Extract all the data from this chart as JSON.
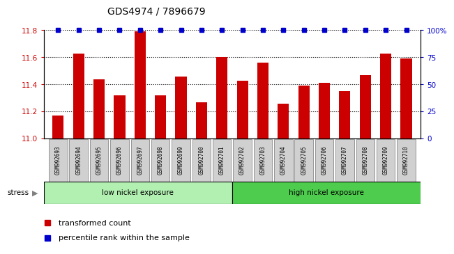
{
  "title": "GDS4974 / 7896679",
  "samples": [
    "GSM992693",
    "GSM992694",
    "GSM992695",
    "GSM992696",
    "GSM992697",
    "GSM992698",
    "GSM992699",
    "GSM992700",
    "GSM992701",
    "GSM992702",
    "GSM992703",
    "GSM992704",
    "GSM992705",
    "GSM992706",
    "GSM992707",
    "GSM992708",
    "GSM992709",
    "GSM992710"
  ],
  "bar_values": [
    11.17,
    11.63,
    11.44,
    11.32,
    11.79,
    11.32,
    11.46,
    11.27,
    11.6,
    11.43,
    11.56,
    11.26,
    11.39,
    11.41,
    11.35,
    11.47,
    11.63,
    11.59
  ],
  "percentile_values": [
    100,
    100,
    100,
    100,
    100,
    100,
    100,
    100,
    100,
    100,
    100,
    100,
    100,
    100,
    100,
    100,
    100,
    100
  ],
  "bar_color": "#cc0000",
  "percentile_color": "#0000cc",
  "ylim_left": [
    11.0,
    11.8
  ],
  "ylim_right": [
    0,
    100
  ],
  "yticks_left": [
    11.0,
    11.2,
    11.4,
    11.6,
    11.8
  ],
  "yticks_right": [
    0,
    25,
    50,
    75,
    100
  ],
  "ytick_labels_right": [
    "0",
    "25",
    "50",
    "75",
    "100%"
  ],
  "low_nickel_samples": 9,
  "group1_label": "low nickel exposure",
  "group2_label": "high nickel exposure",
  "group1_color": "#b2f0b2",
  "group2_color": "#4dcc4d",
  "stress_label": "stress",
  "legend_bar_label": "transformed count",
  "legend_pct_label": "percentile rank within the sample",
  "bg_color": "#ffffff",
  "tick_label_color_left": "#cc0000",
  "tick_label_color_right": "#0000cc"
}
